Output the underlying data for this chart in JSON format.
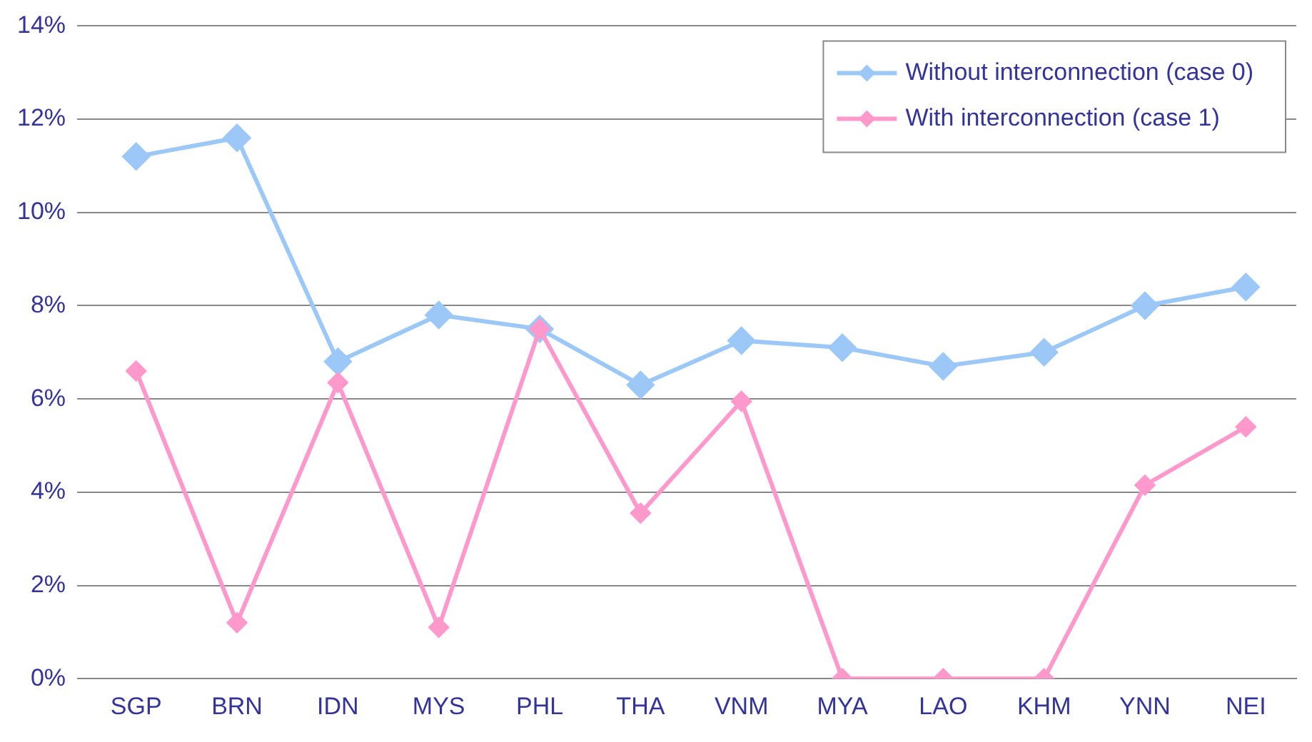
{
  "chart_data": {
    "type": "line",
    "categories": [
      "SGP",
      "BRN",
      "IDN",
      "MYS",
      "PHL",
      "THA",
      "VNM",
      "MYA",
      "LAO",
      "KHM",
      "YNN",
      "NEI"
    ],
    "series": [
      {
        "name": "Without interconnection (case 0)",
        "color": "#9cc8f8",
        "values": [
          11.2,
          11.6,
          6.8,
          7.8,
          7.5,
          6.3,
          7.25,
          7.1,
          6.7,
          7.0,
          8.0,
          8.4
        ]
      },
      {
        "name": "With interconnection (case 1)",
        "color": "#ff99cc",
        "values": [
          6.6,
          1.2,
          6.35,
          1.1,
          7.5,
          3.55,
          5.95,
          0,
          0,
          0,
          4.15,
          5.4
        ]
      }
    ],
    "ylim": [
      0,
      14
    ],
    "yticks": [
      {
        "value": 0,
        "label": "0%"
      },
      {
        "value": 2,
        "label": "2%"
      },
      {
        "value": 4,
        "label": "4%"
      },
      {
        "value": 6,
        "label": "6%"
      },
      {
        "value": 8,
        "label": "8%"
      },
      {
        "value": 10,
        "label": "10%"
      },
      {
        "value": 12,
        "label": "12%"
      },
      {
        "value": 14,
        "label": "14%"
      }
    ],
    "grid": "y",
    "legend": "top right",
    "marker": "diamond",
    "line_style": "solid"
  }
}
